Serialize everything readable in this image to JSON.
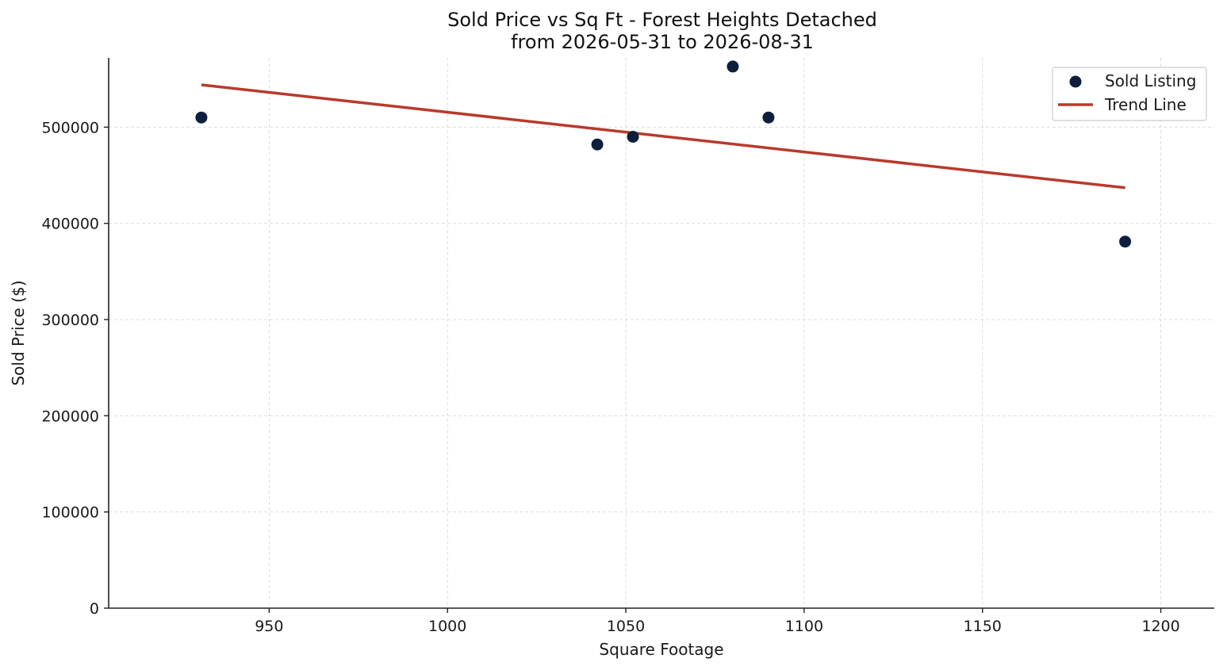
{
  "chart_data": {
    "type": "scatter",
    "title": "Sold Price vs Sq Ft - Forest Heights Detached",
    "subtitle": "from 2026-05-31 to 2026-08-31",
    "xlabel": "Square Footage",
    "ylabel": "Sold Price ($)",
    "xlim": [
      905,
      1215
    ],
    "ylim": [
      0,
      572000
    ],
    "xticks": [
      950,
      1000,
      1050,
      1100,
      1150,
      1200
    ],
    "yticks": [
      0,
      100000,
      200000,
      300000,
      400000,
      500000
    ],
    "grid": true,
    "legend_position": "top-right",
    "series": [
      {
        "name": "Sold Listing",
        "kind": "scatter",
        "color": "#0d1f3c",
        "points": [
          {
            "x": 931,
            "y": 510000
          },
          {
            "x": 1042,
            "y": 482000
          },
          {
            "x": 1052,
            "y": 490000
          },
          {
            "x": 1080,
            "y": 563000
          },
          {
            "x": 1090,
            "y": 510000
          },
          {
            "x": 1190,
            "y": 381000
          }
        ]
      },
      {
        "name": "Trend Line",
        "kind": "line",
        "color": "#b83a2b",
        "points": [
          {
            "x": 931,
            "y": 544000
          },
          {
            "x": 1190,
            "y": 437000
          }
        ]
      }
    ]
  }
}
